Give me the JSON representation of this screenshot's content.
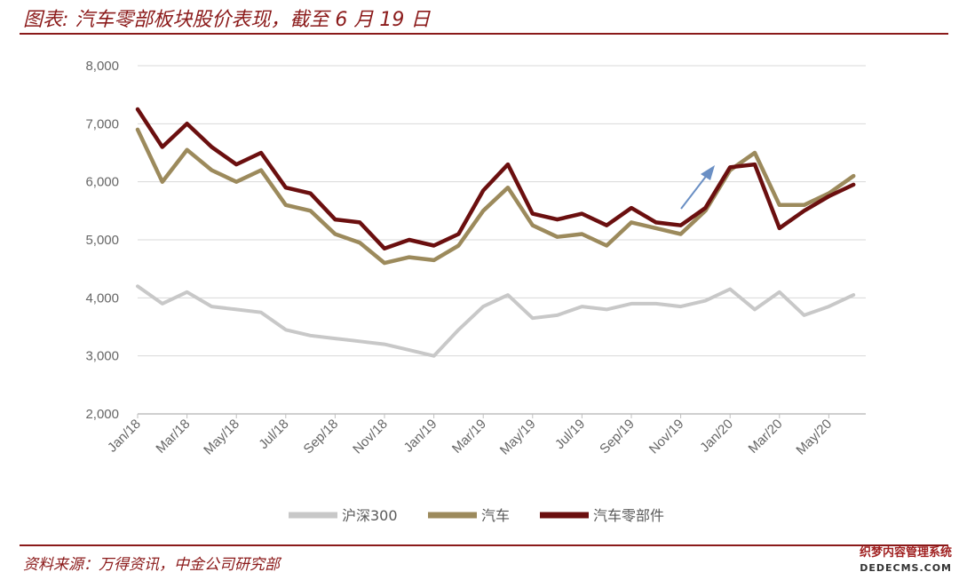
{
  "header": {
    "title": "图表: 汽车零部板块股价表现，截至 6 月 19 日"
  },
  "footer": {
    "source": "资料来源：万得资讯，中金公司研究部"
  },
  "watermark": {
    "line1": "织梦内容管理系统",
    "line2": "DEDECMS.COM"
  },
  "colors": {
    "hs300": "#c8c8c8",
    "auto": "#9c8a5c",
    "parts": "#6b0f0f",
    "arrow": "#6a8fc4",
    "grid": "#d9d9d9",
    "rule": "#8b1a1a"
  },
  "chart_data": {
    "type": "line",
    "title": "",
    "xlabel": "",
    "ylabel": "",
    "ylim": [
      2000,
      8000
    ],
    "y_ticks": [
      2000,
      3000,
      4000,
      5000,
      6000,
      7000,
      8000
    ],
    "y_tick_labels": [
      "2,000",
      "3,000",
      "4,000",
      "5,000",
      "6,000",
      "7,000",
      "8,000"
    ],
    "x_tick_labels": [
      "Jan/18",
      "Mar/18",
      "May/18",
      "Jul/18",
      "Sep/18",
      "Nov/18",
      "Jan/19",
      "Mar/19",
      "May/19",
      "Jul/19",
      "Sep/19",
      "Nov/19",
      "Jan/20",
      "Mar/20",
      "May/20"
    ],
    "grid": "horizontal",
    "legend_position": "bottom",
    "x": [
      "2018-01",
      "2018-02",
      "2018-03",
      "2018-04",
      "2018-05",
      "2018-06",
      "2018-07",
      "2018-08",
      "2018-09",
      "2018-10",
      "2018-11",
      "2018-12",
      "2019-01",
      "2019-02",
      "2019-03",
      "2019-04",
      "2019-05",
      "2019-06",
      "2019-07",
      "2019-08",
      "2019-09",
      "2019-10",
      "2019-11",
      "2019-12",
      "2020-01",
      "2020-02",
      "2020-03",
      "2020-04",
      "2020-05",
      "2020-06"
    ],
    "series": [
      {
        "name": "沪深300",
        "color": "#c8c8c8",
        "values": [
          4200,
          3900,
          4100,
          3850,
          3800,
          3750,
          3450,
          3350,
          3300,
          3250,
          3200,
          3100,
          3000,
          3450,
          3850,
          4050,
          3650,
          3700,
          3850,
          3800,
          3900,
          3900,
          3850,
          3950,
          4150,
          3800,
          4100,
          3700,
          3850,
          4050
        ]
      },
      {
        "name": "汽车",
        "color": "#9c8a5c",
        "values": [
          6900,
          6000,
          6550,
          6200,
          6000,
          6200,
          5600,
          5500,
          5100,
          4950,
          4600,
          4700,
          4650,
          4900,
          5500,
          5900,
          5250,
          5050,
          5100,
          4900,
          5300,
          5200,
          5100,
          5500,
          6200,
          6500,
          5600,
          5600,
          5800,
          6100
        ]
      },
      {
        "name": "汽车零部件",
        "color": "#6b0f0f",
        "values": [
          7250,
          6600,
          7000,
          6600,
          6300,
          6500,
          5900,
          5800,
          5350,
          5300,
          4850,
          5000,
          4900,
          5100,
          5850,
          6300,
          5450,
          5350,
          5450,
          5250,
          5550,
          5300,
          5250,
          5550,
          6250,
          6300,
          5200,
          5500,
          5750,
          5950
        ]
      }
    ]
  }
}
